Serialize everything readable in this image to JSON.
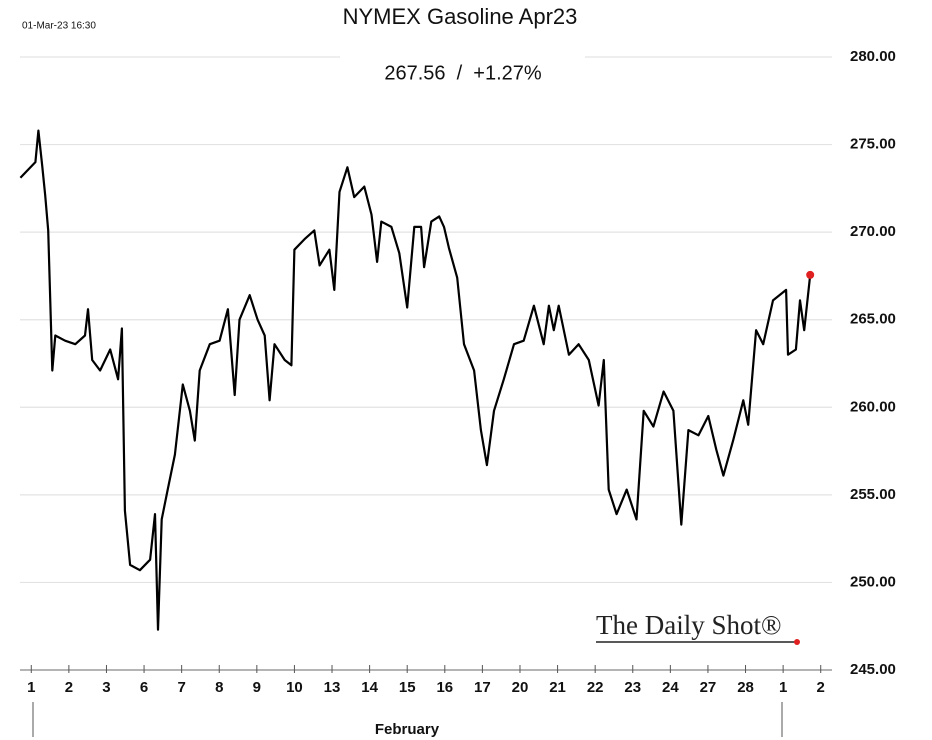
{
  "chart_data": {
    "type": "line",
    "timestamp": "01-Mar-23 16:30",
    "title": "NYMEX Gasoline Apr23",
    "subtitle": "267.56  /  +1.27%",
    "logo": "The Daily Shot®",
    "x_group_label": "February",
    "color": "#000000",
    "marker_color": "#e02020",
    "grid": true,
    "x": [
      -0.29,
      0.11,
      0.19,
      0.29,
      0.37,
      0.45,
      0.56,
      0.64,
      0.9,
      1.17,
      1.43,
      1.51,
      1.62,
      1.83,
      2.1,
      2.31,
      2.41,
      2.49,
      2.63,
      2.89,
      3.16,
      3.29,
      3.37,
      3.47,
      3.63,
      3.82,
      4.03,
      4.22,
      4.35,
      4.48,
      4.75,
      5.01,
      5.23,
      5.41,
      5.54,
      5.81,
      6.02,
      6.21,
      6.34,
      6.47,
      6.74,
      6.92,
      7.0,
      7.27,
      7.53,
      7.67,
      7.93,
      8.06,
      8.2,
      8.41,
      8.59,
      8.86,
      9.05,
      9.2,
      9.31,
      9.58,
      9.79,
      10.0,
      10.19,
      10.37,
      10.45,
      10.64,
      10.85,
      10.98,
      11.11,
      11.33,
      11.51,
      11.78,
      11.96,
      12.12,
      12.31,
      12.57,
      12.84,
      13.1,
      13.37,
      13.63,
      13.77,
      13.9,
      14.03,
      14.3,
      14.56,
      14.83,
      15.09,
      15.23,
      15.36,
      15.57,
      15.84,
      16.1,
      16.29,
      16.55,
      16.82,
      17.08,
      17.29,
      17.48,
      17.75,
      18.01,
      18.22,
      18.41,
      18.67,
      18.94,
      19.07,
      19.28,
      19.47,
      19.73,
      20.08,
      20.13,
      20.34,
      20.45,
      20.56,
      20.72
    ],
    "values": [
      273.1,
      274.0,
      275.8,
      273.8,
      272.1,
      270.1,
      262.1,
      264.1,
      263.8,
      263.6,
      264.1,
      265.6,
      262.7,
      262.1,
      263.3,
      261.6,
      264.5,
      254.1,
      251.0,
      250.7,
      251.3,
      253.9,
      247.3,
      253.6,
      255.3,
      257.3,
      261.3,
      259.8,
      258.1,
      262.1,
      263.6,
      263.8,
      265.6,
      260.7,
      265.0,
      266.4,
      265.0,
      264.1,
      260.4,
      263.6,
      262.7,
      262.4,
      269.0,
      269.6,
      270.1,
      268.1,
      269.0,
      266.7,
      272.3,
      273.7,
      272.0,
      272.6,
      271.0,
      268.3,
      270.6,
      270.3,
      268.8,
      265.7,
      270.3,
      270.3,
      268.0,
      270.6,
      270.9,
      270.3,
      269.1,
      267.4,
      263.6,
      262.1,
      258.7,
      256.7,
      259.8,
      261.6,
      263.6,
      263.8,
      265.8,
      263.6,
      265.8,
      264.4,
      265.8,
      263.0,
      263.6,
      262.7,
      260.1,
      262.7,
      255.3,
      253.9,
      255.3,
      253.6,
      259.8,
      258.9,
      260.9,
      259.8,
      253.3,
      258.7,
      258.4,
      259.5,
      257.6,
      256.1,
      258.1,
      260.4,
      259.0,
      264.4,
      263.6,
      266.1,
      266.7,
      263.0,
      263.3,
      266.1,
      264.4,
      267.56
    ],
    "xlim": [
      -0.3,
      21.3
    ],
    "xticks": [
      {
        "value": 0,
        "label": "1"
      },
      {
        "value": 1,
        "label": "2"
      },
      {
        "value": 2,
        "label": "3"
      },
      {
        "value": 3,
        "label": "6"
      },
      {
        "value": 4,
        "label": "7"
      },
      {
        "value": 5,
        "label": "8"
      },
      {
        "value": 6,
        "label": "9"
      },
      {
        "value": 7,
        "label": "10"
      },
      {
        "value": 8,
        "label": "13"
      },
      {
        "value": 9,
        "label": "14"
      },
      {
        "value": 10,
        "label": "15"
      },
      {
        "value": 11,
        "label": "16"
      },
      {
        "value": 12,
        "label": "17"
      },
      {
        "value": 13,
        "label": "20"
      },
      {
        "value": 14,
        "label": "21"
      },
      {
        "value": 15,
        "label": "22"
      },
      {
        "value": 16,
        "label": "23"
      },
      {
        "value": 17,
        "label": "24"
      },
      {
        "value": 18,
        "label": "27"
      },
      {
        "value": 19,
        "label": "28"
      },
      {
        "value": 20,
        "label": "1"
      },
      {
        "value": 21,
        "label": "2"
      }
    ],
    "ylim": [
      245,
      280
    ],
    "yticks": [
      {
        "value": 245,
        "label": "245.00"
      },
      {
        "value": 250,
        "label": "250.00"
      },
      {
        "value": 255,
        "label": "255.00"
      },
      {
        "value": 260,
        "label": "260.00"
      },
      {
        "value": 265,
        "label": "265.00"
      },
      {
        "value": 270,
        "label": "270.00"
      },
      {
        "value": 275,
        "label": "275.00"
      },
      {
        "value": 280,
        "label": "280.00"
      }
    ]
  }
}
